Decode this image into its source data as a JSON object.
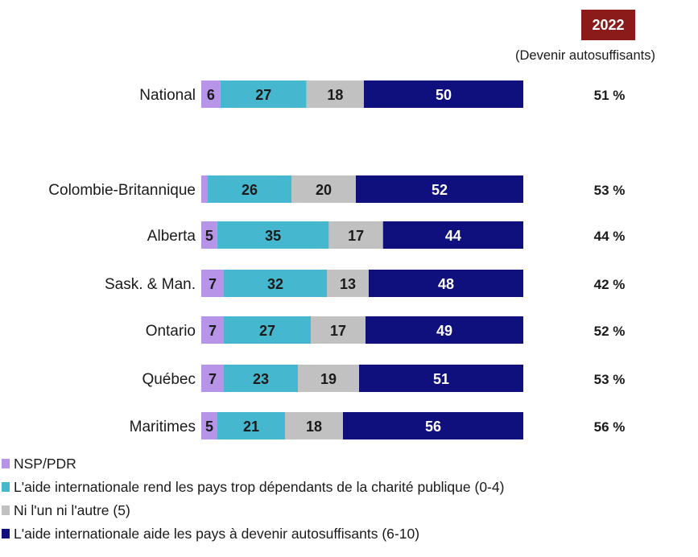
{
  "chart_data": {
    "type": "bar",
    "orientation": "horizontal",
    "stacked": true,
    "categories": [
      "National",
      "Colombie-Britannique",
      "Alberta",
      "Sask. & Man.",
      "Ontario",
      "Québec",
      "Maritimes"
    ],
    "series": [
      {
        "name": "NSP/PDR",
        "color": "#b694e8",
        "values": [
          6,
          2,
          5,
          7,
          7,
          7,
          5
        ]
      },
      {
        "name": "L'aide internationale rend les pays trop dépendants de la charité publique (0-4)",
        "color": "#45b8cf",
        "values": [
          27,
          26,
          35,
          32,
          27,
          23,
          21
        ]
      },
      {
        "name": "Ni l'un ni l'autre (5)",
        "color": "#c1c1c1",
        "values": [
          18,
          20,
          17,
          13,
          17,
          19,
          18
        ]
      },
      {
        "name": "L'aide internationale aide les pays à devenir autosuffisants (6-10)",
        "color": "#0f0f7e",
        "values": [
          50,
          52,
          44,
          48,
          49,
          51,
          56
        ]
      }
    ],
    "segment_label_colors": [
      "#1a1a1a",
      "#1a1a1a",
      "#1a1a1a",
      "#ffffff"
    ],
    "xlim": [
      0,
      100
    ],
    "legend_position": "bottom-left",
    "comparison_column": {
      "header": "2022",
      "header_color": "#8b1a1a",
      "subtitle": "(Devenir autosuffisants)",
      "values": [
        "51 %",
        "53 %",
        "44 %",
        "42 %",
        "52 %",
        "53 %",
        "56 %"
      ]
    }
  }
}
